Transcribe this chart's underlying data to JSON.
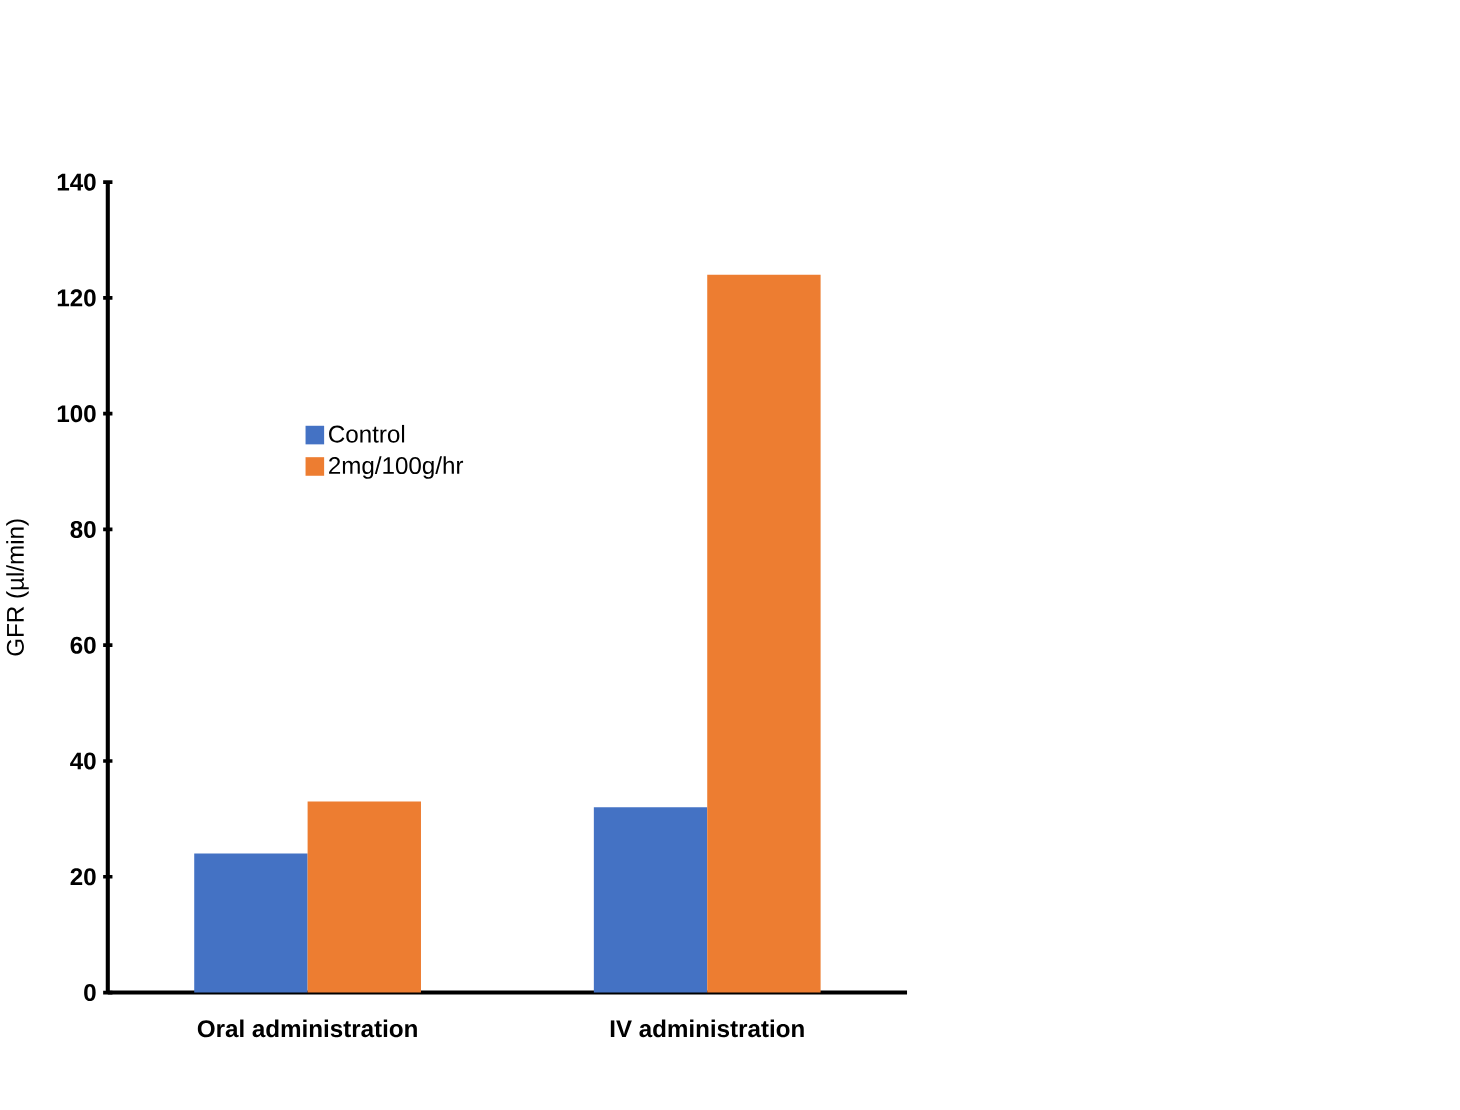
{
  "chart_data": {
    "type": "bar",
    "ylabel": "GFR (µl/min)",
    "categories": [
      "Oral administration",
      "IV administration"
    ],
    "series": [
      {
        "name": "Control",
        "color": "#4472c4",
        "values": [
          24,
          32
        ]
      },
      {
        "name": "2mg/100g/hr",
        "color": "#ed7d31",
        "values": [
          33,
          124
        ]
      }
    ],
    "ylim": [
      0,
      140
    ],
    "yticks": [
      0,
      20,
      40,
      60,
      80,
      100,
      120,
      140
    ],
    "legend": "top left",
    "grid": false
  }
}
